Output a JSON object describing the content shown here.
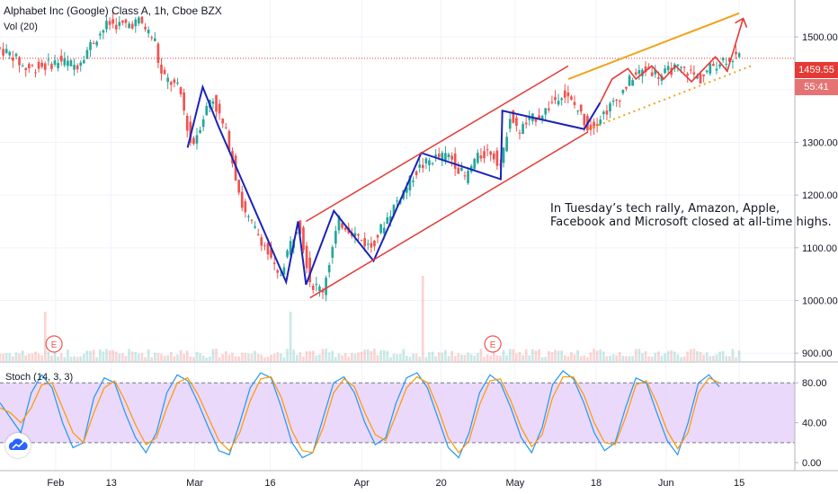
{
  "header": {
    "title": "Alphabet Inc (Google) Class A, 1h, Cboe BZX",
    "volume_label": "Vol (20)"
  },
  "price_tags": {
    "last_price": "1459.55",
    "countdown": "55:41"
  },
  "annotation": {
    "line1": "In Tuesday’s tech rally, Amazon, Apple,",
    "line2": "Facebook and Microsoft closed at all-time highs."
  },
  "earnings_marker": "E",
  "oscillator_label": "Stoch (14, 3, 3)",
  "colors": {
    "up": "#26a69a",
    "down": "#ef5350",
    "wave": "#1a23b8",
    "channel": "#e53935",
    "projection": "#f2a21b",
    "stoch_band": "#e5cff9",
    "stoch_k": "#2196f3",
    "stoch_d": "#ff9800",
    "price_line": "#e53935"
  },
  "logo_icon": "tradingview-cloud-icon",
  "chart_data": [
    {
      "type": "line",
      "subtype": "candlestick",
      "title": "Alphabet Inc (Google) Class A, 1h, Cboe BZX",
      "x_tick_labels": [
        "Feb",
        "13",
        "Mar",
        "16",
        "Apr",
        "20",
        "May",
        "18",
        "Jun",
        "15"
      ],
      "y_tick_labels": [
        "1500.00",
        "1400.00",
        "1300.00",
        "1200.00",
        "1100.00",
        "1000.00",
        "900.00"
      ],
      "ylim": [
        885,
        1570
      ],
      "last_price": 1459.55,
      "price_path": [
        {
          "x": 0,
          "y": 1480
        },
        {
          "x": 0.02,
          "y": 1465
        },
        {
          "x": 0.035,
          "y": 1440
        },
        {
          "x": 0.06,
          "y": 1445
        },
        {
          "x": 0.08,
          "y": 1455
        },
        {
          "x": 0.1,
          "y": 1445
        },
        {
          "x": 0.12,
          "y": 1490
        },
        {
          "x": 0.14,
          "y": 1525
        },
        {
          "x": 0.16,
          "y": 1522
        },
        {
          "x": 0.18,
          "y": 1530
        },
        {
          "x": 0.2,
          "y": 1490
        },
        {
          "x": 0.205,
          "y": 1430
        },
        {
          "x": 0.23,
          "y": 1400
        },
        {
          "x": 0.245,
          "y": 1290
        },
        {
          "x": 0.27,
          "y": 1390
        },
        {
          "x": 0.29,
          "y": 1310
        },
        {
          "x": 0.31,
          "y": 1170
        },
        {
          "x": 0.335,
          "y": 1110
        },
        {
          "x": 0.355,
          "y": 1040
        },
        {
          "x": 0.365,
          "y": 1090
        },
        {
          "x": 0.38,
          "y": 1150
        },
        {
          "x": 0.395,
          "y": 1030
        },
        {
          "x": 0.41,
          "y": 1020
        },
        {
          "x": 0.43,
          "y": 1150
        },
        {
          "x": 0.44,
          "y": 1140
        },
        {
          "x": 0.455,
          "y": 1120
        },
        {
          "x": 0.47,
          "y": 1100
        },
        {
          "x": 0.5,
          "y": 1180
        },
        {
          "x": 0.53,
          "y": 1250
        },
        {
          "x": 0.55,
          "y": 1270
        },
        {
          "x": 0.57,
          "y": 1275
        },
        {
          "x": 0.59,
          "y": 1230
        },
        {
          "x": 0.6,
          "y": 1265
        },
        {
          "x": 0.62,
          "y": 1285
        },
        {
          "x": 0.635,
          "y": 1255
        },
        {
          "x": 0.645,
          "y": 1355
        },
        {
          "x": 0.655,
          "y": 1320
        },
        {
          "x": 0.67,
          "y": 1340
        },
        {
          "x": 0.69,
          "y": 1360
        },
        {
          "x": 0.71,
          "y": 1395
        },
        {
          "x": 0.73,
          "y": 1365
        },
        {
          "x": 0.745,
          "y": 1325
        },
        {
          "x": 0.76,
          "y": 1350
        },
        {
          "x": 0.78,
          "y": 1380
        },
        {
          "x": 0.8,
          "y": 1425
        },
        {
          "x": 0.82,
          "y": 1440
        },
        {
          "x": 0.835,
          "y": 1425
        },
        {
          "x": 0.85,
          "y": 1440
        },
        {
          "x": 0.87,
          "y": 1435
        },
        {
          "x": 0.885,
          "y": 1420
        },
        {
          "x": 0.9,
          "y": 1445
        },
        {
          "x": 0.915,
          "y": 1458
        },
        {
          "x": 0.93,
          "y": 1462
        }
      ]
    },
    {
      "type": "line",
      "title": "Stoch (14, 3, 3)",
      "y_tick_labels": [
        "80.00",
        "40.00",
        "0.00"
      ],
      "ylim": [
        -8,
        100
      ],
      "band": [
        20,
        80
      ],
      "series": [
        {
          "name": "%K",
          "values": [
            60,
            45,
            30,
            70,
            88,
            75,
            40,
            15,
            20,
            65,
            85,
            80,
            50,
            25,
            10,
            30,
            70,
            88,
            82,
            60,
            35,
            12,
            8,
            40,
            75,
            90,
            85,
            55,
            20,
            5,
            10,
            45,
            80,
            86,
            70,
            40,
            18,
            25,
            60,
            85,
            90,
            75,
            45,
            15,
            5,
            30,
            70,
            88,
            80,
            55,
            25,
            10,
            35,
            78,
            92,
            84,
            60,
            30,
            12,
            20,
            55,
            85,
            80,
            50,
            22,
            8,
            40,
            80,
            88,
            76
          ]
        },
        {
          "name": "%D",
          "values": [
            55,
            50,
            40,
            55,
            78,
            80,
            55,
            30,
            20,
            50,
            75,
            82,
            62,
            38,
            18,
            25,
            55,
            80,
            85,
            68,
            45,
            22,
            12,
            30,
            62,
            84,
            86,
            65,
            32,
            12,
            10,
            35,
            70,
            84,
            76,
            50,
            28,
            22,
            48,
            75,
            86,
            80,
            55,
            25,
            10,
            22,
            58,
            82,
            84,
            62,
            35,
            16,
            28,
            65,
            86,
            86,
            68,
            40,
            20,
            18,
            45,
            78,
            82,
            60,
            32,
            14,
            30,
            70,
            85,
            80
          ]
        }
      ]
    }
  ]
}
